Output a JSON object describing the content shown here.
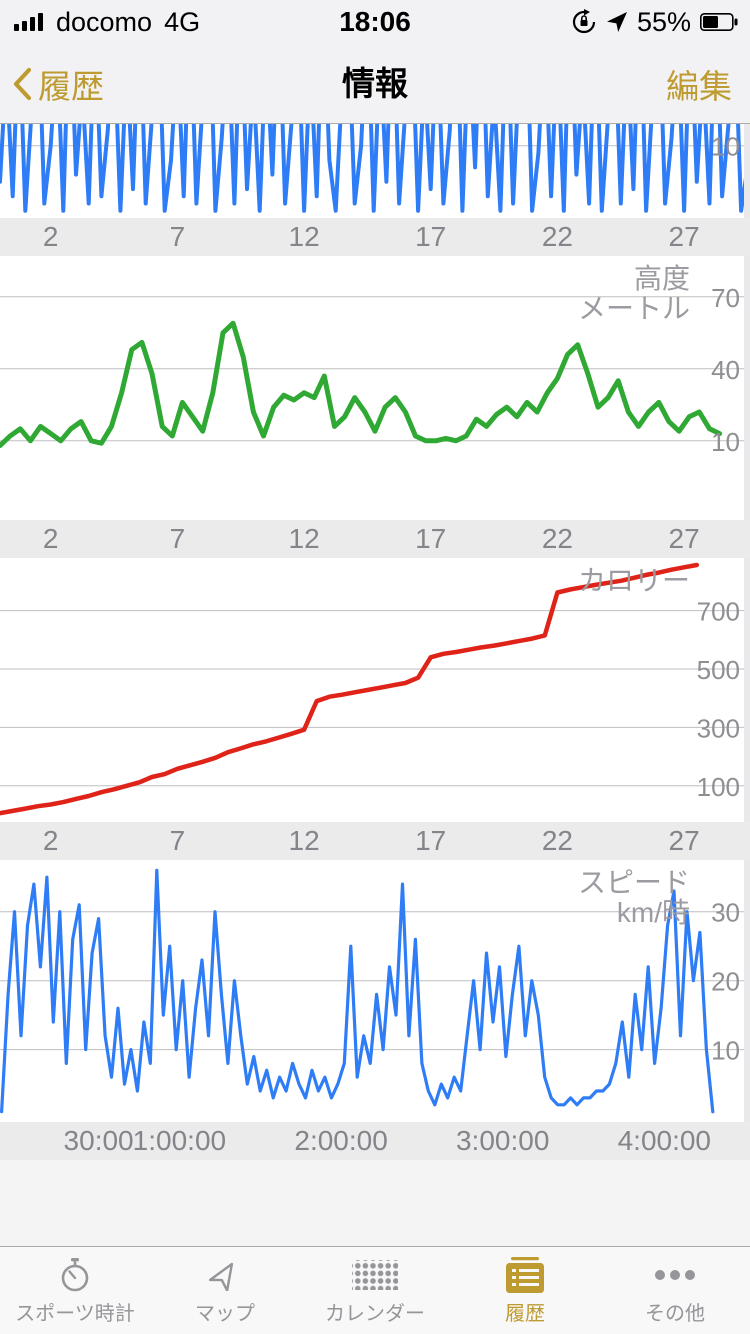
{
  "status_bar": {
    "carrier": "docomo",
    "network": "4G",
    "time": "18:06",
    "battery_percent": "55%"
  },
  "nav_bar": {
    "back_label": "履歴",
    "title": "情報",
    "edit_label": "編集"
  },
  "colors": {
    "accent_gold": "#BE9B30",
    "blue": "#2F7DF6",
    "green": "#2FA834",
    "red": "#E02318",
    "tab_inactive": "#95959A",
    "gridline": "#BFBFC3",
    "axis_band": "#EBEBEC"
  },
  "chart_data": [
    {
      "name": "top-chart-partial",
      "type": "line",
      "color": "#2F7DF6",
      "stroke_width": 4,
      "x_range": [
        0,
        29.6
      ],
      "y_range": [
        0,
        13
      ],
      "x_ticks": [
        {
          "label": "2",
          "value": 2
        },
        {
          "label": "7",
          "value": 7
        },
        {
          "label": "12",
          "value": 12
        },
        {
          "label": "17",
          "value": 17
        },
        {
          "label": "22",
          "value": 22
        },
        {
          "label": "27",
          "value": 27
        }
      ],
      "y_ticks": [
        {
          "label": "10",
          "value": 10
        }
      ],
      "title_lines": [],
      "series": {
        "x_start": 0,
        "x_step": 0.25,
        "y": [
          5,
          21,
          3,
          27,
          1,
          15,
          29,
          2,
          10,
          24,
          1,
          31,
          6,
          18,
          2,
          27,
          3,
          12,
          25,
          1,
          22,
          4,
          30,
          2,
          14,
          27,
          1,
          8,
          23,
          3,
          29,
          2,
          16,
          31,
          1,
          11,
          25,
          2,
          28,
          4,
          19,
          1,
          24,
          6,
          30,
          2,
          13,
          27,
          1,
          22,
          3,
          31,
          8,
          1,
          18,
          26,
          2,
          10,
          29,
          1,
          23,
          5,
          31,
          2,
          15,
          27,
          1,
          20,
          4,
          26,
          2,
          12,
          30,
          1,
          25,
          7,
          31,
          3,
          17,
          1,
          28,
          2,
          21,
          31,
          1,
          9,
          26,
          3,
          24,
          1,
          31,
          6,
          19,
          2,
          28,
          1,
          14,
          27,
          2,
          23,
          4,
          31,
          1,
          16,
          29,
          2,
          11,
          25,
          1,
          28,
          5,
          20,
          2,
          31,
          3,
          13,
          26,
          1,
          7
        ]
      }
    },
    {
      "name": "altitude",
      "type": "line",
      "color": "#2FA834",
      "stroke_width": 5,
      "x_range": [
        0,
        29.6
      ],
      "y_range": [
        -23,
        87
      ],
      "x_ticks": [
        {
          "label": "2",
          "value": 2
        },
        {
          "label": "7",
          "value": 7
        },
        {
          "label": "12",
          "value": 12
        },
        {
          "label": "17",
          "value": 17
        },
        {
          "label": "22",
          "value": 22
        },
        {
          "label": "27",
          "value": 27
        }
      ],
      "y_ticks": [
        {
          "label": "70",
          "value": 70
        },
        {
          "label": "40",
          "value": 40
        },
        {
          "label": "10",
          "value": 10
        }
      ],
      "title_lines": [
        "高度",
        "メートル"
      ],
      "series": {
        "x_start": 0,
        "x_step": 0.4,
        "y": [
          8,
          12,
          15,
          10,
          16,
          13,
          10,
          15,
          18,
          10,
          9,
          16,
          30,
          48,
          51,
          38,
          16,
          12,
          26,
          20,
          14,
          30,
          55,
          59,
          45,
          22,
          12,
          24,
          29,
          27,
          30,
          28,
          37,
          16,
          20,
          28,
          22,
          14,
          24,
          28,
          22,
          12,
          10,
          10,
          11,
          10,
          12,
          19,
          16,
          21,
          24,
          20,
          26,
          22,
          30,
          36,
          46,
          50,
          38,
          24,
          28,
          35,
          22,
          16,
          22,
          26,
          18,
          14,
          20,
          22,
          15,
          13
        ]
      }
    },
    {
      "name": "calories",
      "type": "line",
      "color": "#E02318",
      "stroke_width": 4.5,
      "x_range": [
        0,
        29.6
      ],
      "y_range": [
        -24,
        880
      ],
      "x_ticks": [
        {
          "label": "2",
          "value": 2
        },
        {
          "label": "7",
          "value": 7
        },
        {
          "label": "12",
          "value": 12
        },
        {
          "label": "17",
          "value": 17
        },
        {
          "label": "22",
          "value": 22
        },
        {
          "label": "27",
          "value": 27
        }
      ],
      "y_ticks": [
        {
          "label": "700",
          "value": 700
        },
        {
          "label": "500",
          "value": 500
        },
        {
          "label": "300",
          "value": 300
        },
        {
          "label": "100",
          "value": 100
        }
      ],
      "title_lines": [
        "カロリー"
      ],
      "series": {
        "x_start": 0,
        "x_step": 0.5,
        "y": [
          6,
          14,
          22,
          30,
          36,
          44,
          55,
          65,
          78,
          88,
          100,
          112,
          130,
          140,
          158,
          170,
          182,
          196,
          215,
          228,
          242,
          252,
          265,
          278,
          292,
          390,
          405,
          412,
          420,
          428,
          436,
          444,
          452,
          470,
          540,
          552,
          558,
          566,
          574,
          580,
          588,
          596,
          604,
          615,
          762,
          772,
          780,
          788,
          795,
          802,
          812,
          822,
          830,
          840,
          848,
          856
        ]
      }
    },
    {
      "name": "speed",
      "type": "line",
      "color": "#2F7DF6",
      "stroke_width": 3.2,
      "x_range": [
        -0.11,
        4.53
      ],
      "y_range": [
        -0.5,
        37.5
      ],
      "x_ticks": [
        {
          "label": "30:00",
          "value": 0.5
        },
        {
          "label": "1:00:00",
          "value": 1
        },
        {
          "label": "2:00:00",
          "value": 2
        },
        {
          "label": "3:00:00",
          "value": 3
        },
        {
          "label": "4:00:00",
          "value": 4
        }
      ],
      "y_ticks": [
        {
          "label": "30",
          "value": 30
        },
        {
          "label": "20",
          "value": 20
        },
        {
          "label": "10",
          "value": 10
        }
      ],
      "title_lines": [
        "スピード",
        "km/時"
      ],
      "series": {
        "x_start": -0.1,
        "x_step": 0.04,
        "y": [
          1,
          18,
          30,
          12,
          28,
          34,
          22,
          35,
          14,
          30,
          8,
          26,
          31,
          10,
          24,
          29,
          12,
          6,
          16,
          5,
          10,
          4,
          14,
          8,
          36,
          15,
          25,
          10,
          20,
          6,
          16,
          23,
          12,
          30,
          18,
          8,
          20,
          12,
          5,
          9,
          4,
          7,
          3,
          6,
          4,
          8,
          5,
          3,
          7,
          4,
          6,
          3,
          5,
          8,
          25,
          6,
          12,
          8,
          18,
          10,
          22,
          15,
          34,
          12,
          26,
          8,
          4,
          2,
          5,
          3,
          6,
          4,
          12,
          20,
          10,
          24,
          14,
          22,
          9,
          18,
          25,
          12,
          20,
          15,
          6,
          3,
          2,
          2,
          3,
          2,
          3,
          3,
          4,
          4,
          5,
          8,
          14,
          6,
          18,
          10,
          22,
          8,
          16,
          28,
          33,
          12,
          30,
          20,
          27,
          10,
          1
        ]
      }
    }
  ],
  "tab_bar": {
    "items": [
      {
        "label": "スポーツ時計",
        "icon": "stopwatch-icon",
        "active": false
      },
      {
        "label": "マップ",
        "icon": "navigation-arrow-icon",
        "active": false
      },
      {
        "label": "カレンダー",
        "icon": "dot-grid-icon",
        "active": false
      },
      {
        "label": "履歴",
        "icon": "history-list-icon",
        "active": true
      },
      {
        "label": "その他",
        "icon": "ellipsis-icon",
        "active": false
      }
    ]
  }
}
